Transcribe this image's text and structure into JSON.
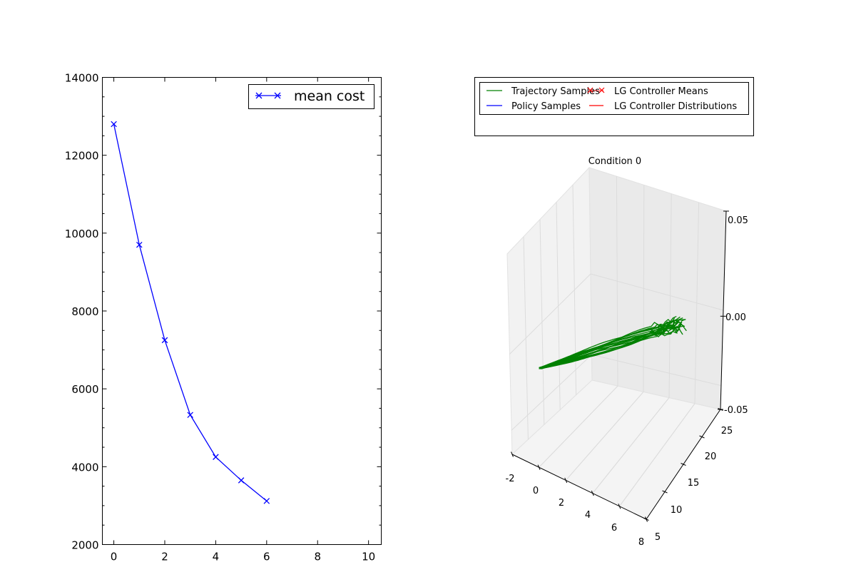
{
  "chart_data": [
    {
      "type": "line",
      "title": "",
      "xlabel": "",
      "ylabel": "",
      "xlim": [
        -0.45,
        10.5
      ],
      "ylim": [
        2000,
        14000
      ],
      "xticks": [
        0,
        2,
        4,
        6,
        8,
        10
      ],
      "yticks": [
        2000,
        4000,
        6000,
        8000,
        10000,
        12000,
        14000
      ],
      "legend": {
        "position": "top-right"
      },
      "series": [
        {
          "name": "mean cost",
          "color": "#0000ff",
          "marker": "x",
          "x": [
            0,
            1,
            2,
            3,
            4,
            5,
            6
          ],
          "y": [
            12800,
            9700,
            7250,
            5330,
            4250,
            3650,
            3120
          ]
        }
      ]
    },
    {
      "type": "line",
      "subtype": "3d",
      "title": "Condition 0",
      "xticks": [
        "-2",
        "0",
        "2",
        "4",
        "6",
        "8"
      ],
      "yticks": [
        "5",
        "10",
        "15",
        "20",
        "25"
      ],
      "zticks": [
        "-0.05",
        "0.00",
        "0.05"
      ],
      "legend": {
        "position": "top",
        "entries": [
          {
            "name": "Trajectory Samples",
            "color": "#008000",
            "marker": "line"
          },
          {
            "name": "Policy Samples",
            "color": "#0000ff",
            "marker": "line"
          },
          {
            "name": "LG Controller Means",
            "color": "#ff0000",
            "marker": "x"
          },
          {
            "name": "LG Controller Distributions",
            "color": "#ff0000",
            "marker": "line"
          }
        ]
      },
      "trajectories": {
        "color": "#008000",
        "count": 20
      }
    }
  ]
}
